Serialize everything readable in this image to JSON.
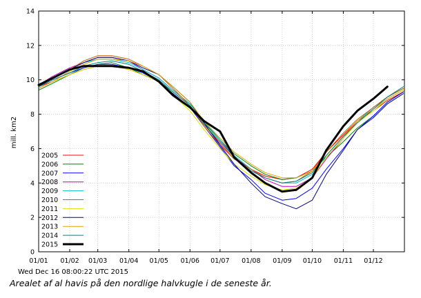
{
  "chart_data": {
    "type": "line",
    "ylabel": "mill. km2",
    "ylim": [
      0,
      14
    ],
    "yticks": [
      "0",
      "2",
      "4",
      "6",
      "8",
      "10",
      "12",
      "14"
    ],
    "xticks": [
      "01/01",
      "01/02",
      "01/03",
      "01/04",
      "01/05",
      "01/06",
      "01/07",
      "01/08",
      "01/09",
      "01/10",
      "01/11",
      "01/12"
    ],
    "x": [
      "01/01",
      "15/01",
      "01/02",
      "15/02",
      "01/03",
      "15/03",
      "01/04",
      "15/04",
      "01/05",
      "15/05",
      "01/06",
      "15/06",
      "01/07",
      "15/07",
      "01/08",
      "15/08",
      "01/09",
      "15/09",
      "01/10",
      "15/10",
      "01/11",
      "15/11",
      "01/12",
      "15/12",
      "31/12"
    ],
    "grid": true,
    "legend_position": "left",
    "series": [
      {
        "name": "2005",
        "color": "#ff0000",
        "values": [
          9.6,
          9.9,
          10.3,
          10.6,
          10.8,
          10.8,
          10.6,
          10.3,
          9.9,
          9.2,
          8.4,
          7.4,
          6.3,
          5.4,
          4.8,
          4.4,
          4.2,
          4.3,
          4.8,
          5.8,
          6.8,
          7.6,
          8.2,
          8.8,
          9.3
        ]
      },
      {
        "name": "2006",
        "color": "#008000",
        "values": [
          9.4,
          9.8,
          10.3,
          10.7,
          10.9,
          11.0,
          10.7,
          10.3,
          9.9,
          9.3,
          8.5,
          7.5,
          6.5,
          5.7,
          5.0,
          4.5,
          4.2,
          4.3,
          4.7,
          5.5,
          6.4,
          7.2,
          7.9,
          8.7,
          9.3
        ]
      },
      {
        "name": "2007",
        "color": "#0000ff",
        "values": [
          9.6,
          10.0,
          10.4,
          10.7,
          10.9,
          10.9,
          10.7,
          10.4,
          9.9,
          9.2,
          8.4,
          7.3,
          6.1,
          5.0,
          4.2,
          3.4,
          3.0,
          3.1,
          3.7,
          4.8,
          6.0,
          7.1,
          7.9,
          8.7,
          9.3
        ]
      },
      {
        "name": "2008",
        "color": "#c000c0",
        "values": [
          9.7,
          10.2,
          10.7,
          11.0,
          11.3,
          11.3,
          11.1,
          10.6,
          10.1,
          9.4,
          8.6,
          7.6,
          6.5,
          5.5,
          4.8,
          4.2,
          3.8,
          3.8,
          4.3,
          5.4,
          6.6,
          7.6,
          8.4,
          9.0,
          9.5
        ]
      },
      {
        "name": "2009",
        "color": "#00c0c0",
        "values": [
          9.6,
          10.1,
          10.6,
          11.0,
          11.2,
          11.2,
          11.0,
          10.6,
          10.1,
          9.4,
          8.6,
          7.6,
          6.5,
          5.6,
          4.8,
          4.3,
          4.0,
          4.0,
          4.5,
          5.6,
          6.7,
          7.6,
          8.4,
          9.0,
          9.5
        ]
      },
      {
        "name": "2010",
        "color": "#c06000",
        "values": [
          9.6,
          10.1,
          10.6,
          11.1,
          11.4,
          11.4,
          11.2,
          10.8,
          10.3,
          9.5,
          8.5,
          7.3,
          6.2,
          5.4,
          4.8,
          4.3,
          4.0,
          4.1,
          4.7,
          5.8,
          6.9,
          7.7,
          8.4,
          9.0,
          9.5
        ]
      },
      {
        "name": "2011",
        "color": "#e0e000",
        "values": [
          9.5,
          9.9,
          10.3,
          10.6,
          10.8,
          10.8,
          10.6,
          10.3,
          9.9,
          9.1,
          8.2,
          7.1,
          6.0,
          5.1,
          4.4,
          3.9,
          3.6,
          3.7,
          4.3,
          5.5,
          6.6,
          7.5,
          8.2,
          8.9,
          9.4
        ]
      },
      {
        "name": "2012",
        "color": "#000080",
        "values": [
          9.6,
          10.1,
          10.6,
          11.0,
          11.3,
          11.3,
          11.1,
          10.7,
          10.3,
          9.6,
          8.7,
          7.5,
          6.2,
          5.1,
          4.0,
          3.2,
          2.8,
          2.5,
          3.0,
          4.5,
          5.9,
          7.1,
          7.8,
          8.6,
          9.2
        ]
      },
      {
        "name": "2013",
        "color": "#e0a000",
        "values": [
          9.5,
          9.9,
          10.5,
          10.9,
          11.2,
          11.2,
          11.1,
          10.8,
          10.3,
          9.6,
          8.7,
          7.6,
          6.6,
          5.8,
          5.1,
          4.6,
          4.3,
          4.3,
          4.7,
          5.6,
          6.7,
          7.6,
          8.3,
          8.9,
          9.4
        ]
      },
      {
        "name": "2014",
        "color": "#008080",
        "values": [
          9.6,
          10.0,
          10.4,
          10.8,
          11.0,
          11.1,
          10.9,
          10.5,
          10.0,
          9.3,
          8.5,
          7.4,
          6.4,
          5.5,
          4.7,
          4.3,
          4.0,
          4.1,
          4.6,
          5.6,
          6.7,
          7.5,
          8.3,
          9.0,
          9.6
        ]
      },
      {
        "name": "2015",
        "color": "#000000",
        "bold": true,
        "values": [
          9.7,
          10.1,
          10.6,
          10.8,
          10.8,
          10.8,
          10.7,
          10.5,
          9.9,
          9.1,
          8.4,
          7.6,
          7.0,
          5.5,
          4.6,
          4.0,
          3.5,
          3.6,
          4.3,
          5.9,
          7.3,
          8.2,
          8.9,
          9.6,
          null
        ]
      }
    ]
  },
  "timestamp": "Wed Dec 16 08:00:22 UTC 2015",
  "caption": "Arealet af al havis på den nordlige halvkugle i de seneste år."
}
